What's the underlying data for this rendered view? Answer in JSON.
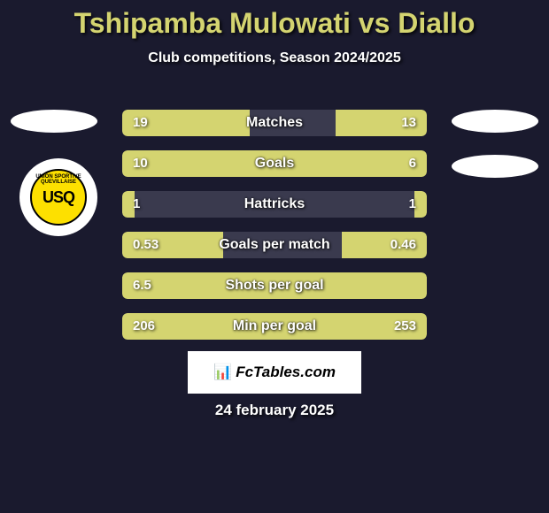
{
  "title": "Tshipamba Mulowati vs Diallo",
  "subtitle": "Club competitions, Season 2024/2025",
  "attribution": "FcTables.com",
  "date": "24 february 2025",
  "colors": {
    "background": "#1a1a2e",
    "title_color": "#d4d470",
    "text_color": "#ffffff",
    "bar_fill": "#d4d470",
    "bar_bg": "#3a3a4e",
    "badge_bg": "#fde000"
  },
  "badge": {
    "top_text": "UNION SPORTIVE QUEVILLAISE",
    "center": "USQ"
  },
  "stats": [
    {
      "label": "Matches",
      "left_val": "19",
      "right_val": "13",
      "left_pct": 42,
      "right_pct": 30
    },
    {
      "label": "Goals",
      "left_val": "10",
      "right_val": "6",
      "left_pct": 62,
      "right_pct": 38
    },
    {
      "label": "Hattricks",
      "left_val": "1",
      "right_val": "1",
      "left_pct": 4,
      "right_pct": 4
    },
    {
      "label": "Goals per match",
      "left_val": "0.53",
      "right_val": "0.46",
      "left_pct": 33,
      "right_pct": 28
    },
    {
      "label": "Shots per goal",
      "left_val": "6.5",
      "right_val": "",
      "left_pct": 100,
      "right_pct": 0,
      "full": true
    },
    {
      "label": "Min per goal",
      "left_val": "206",
      "right_val": "253",
      "left_pct": 45,
      "right_pct": 55
    }
  ]
}
